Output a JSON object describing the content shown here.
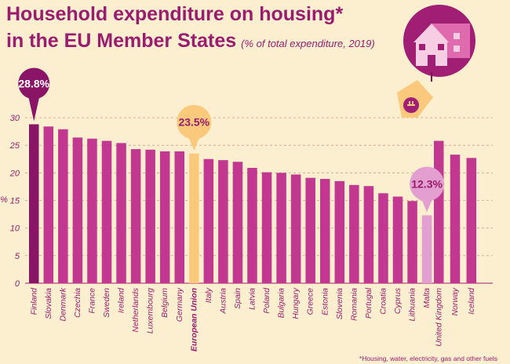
{
  "header": {
    "title_line1": "Household expenditure on housing*",
    "title_line2": "in the EU Member States",
    "subtitle": "(% of total expenditure, 2019)"
  },
  "footnote": "*Housing, water, electricity, gas and other fuels",
  "colors": {
    "background": "#fbefcf",
    "bar": "#c2378f",
    "bar_max": "#8a1466",
    "bar_eu": "#fbc97c",
    "bar_min": "#e39fcf",
    "text": "#9b1c6e"
  },
  "chart_data": {
    "type": "bar",
    "title": "Household expenditure on housing*",
    "subtitle": "(% of total expenditure, 2019)",
    "xlabel": "",
    "ylabel": "%",
    "ylim": [
      0,
      30
    ],
    "yticks": [
      0,
      5,
      10,
      15,
      20,
      25,
      30
    ],
    "grid": "dashed horizontal",
    "categories": [
      "Finland",
      "Slovakia",
      "Denmark",
      "Czechia",
      "France",
      "Sweden",
      "Ireland",
      "Netherlands",
      "Luxembourg",
      "Belgium",
      "Germany",
      "European Union",
      "Italy",
      "Austria",
      "Spain",
      "Latvia",
      "Poland",
      "Bulgaria",
      "Hungary",
      "Greece",
      "Estonia",
      "Slovenia",
      "Romania",
      "Portugal",
      "Croatia",
      "Cyprus",
      "Lithuania",
      "Malta",
      "United Kingdom",
      "Norway",
      "Iceland"
    ],
    "values": [
      28.8,
      28.4,
      27.9,
      26.4,
      26.2,
      25.8,
      25.4,
      24.3,
      24.2,
      23.9,
      23.9,
      23.5,
      22.5,
      22.3,
      22.0,
      20.9,
      20.1,
      20.0,
      19.7,
      19.1,
      18.9,
      18.5,
      17.8,
      17.6,
      16.3,
      15.7,
      14.9,
      12.3,
      25.8,
      23.3,
      22.7
    ],
    "highlights": [
      {
        "category": "Finland",
        "label": "28.8%"
      },
      {
        "category": "European Union",
        "label": "23.5%"
      },
      {
        "category": "Malta",
        "label": "12.3%"
      }
    ]
  }
}
